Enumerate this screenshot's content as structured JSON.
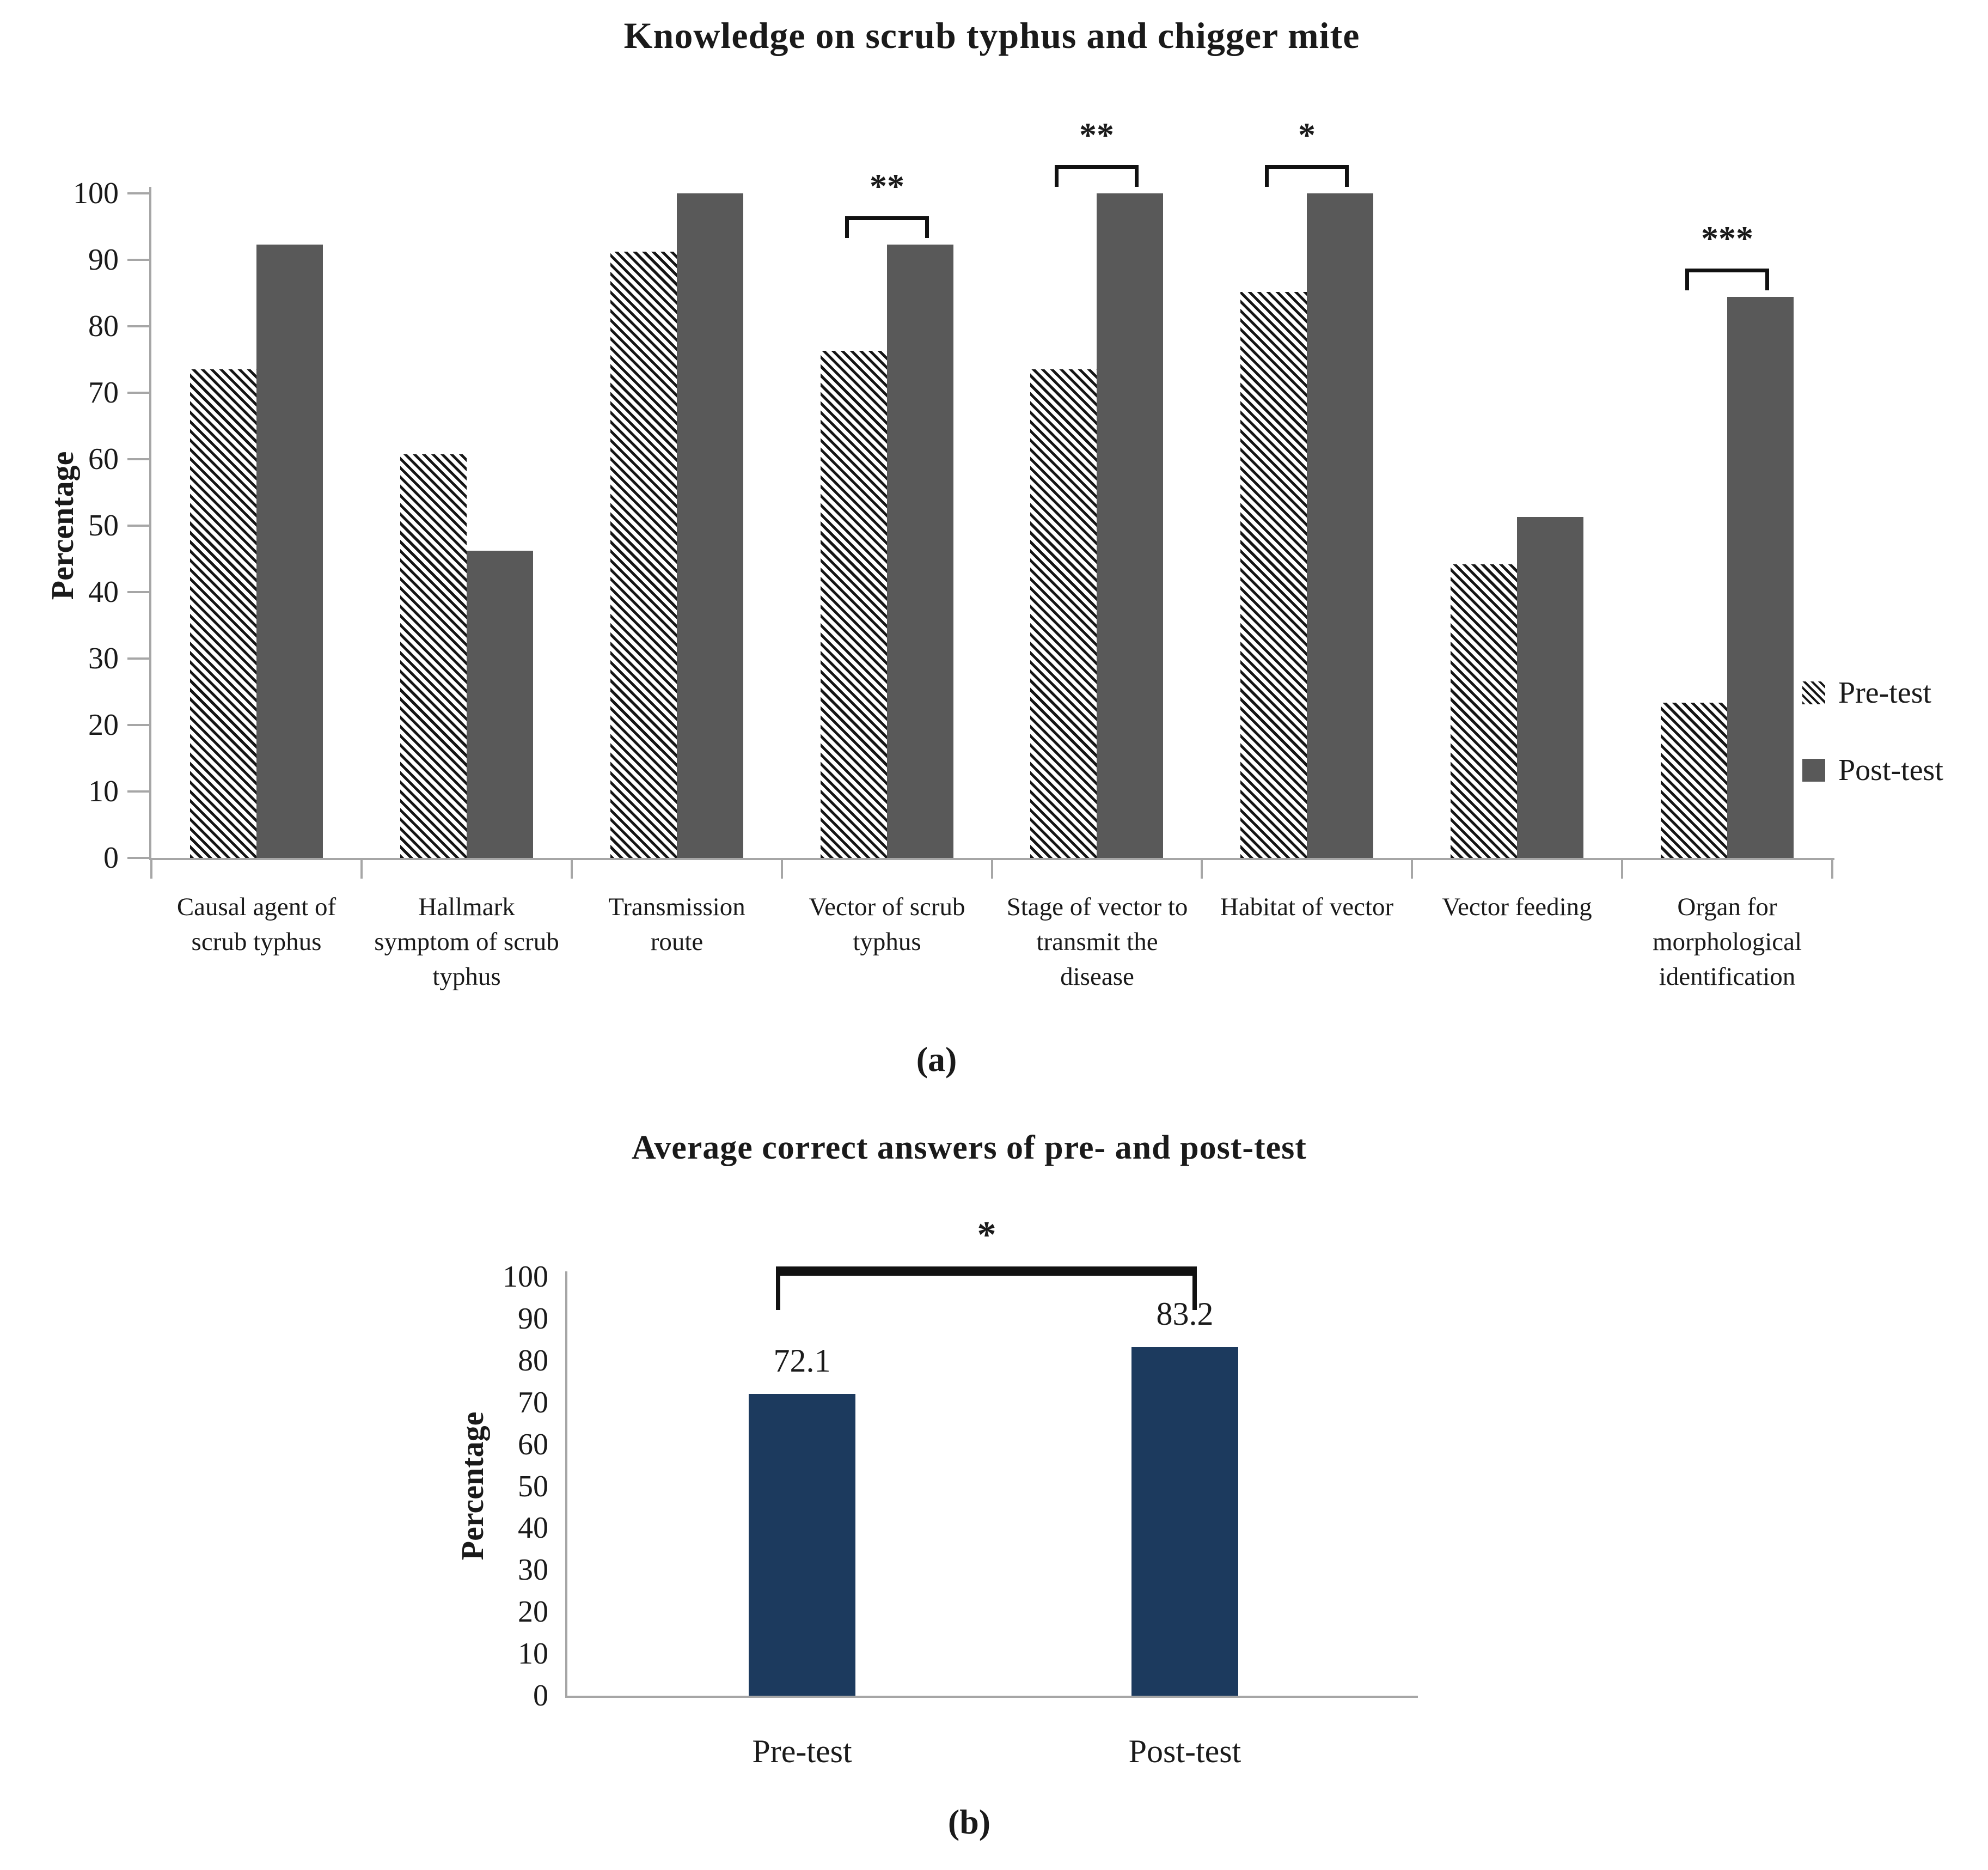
{
  "figure": {
    "caption_a": "(a)",
    "caption_b": "(b)"
  },
  "colors": {
    "post_test_gray": "#595959",
    "pre_test_hatch": "#151515",
    "navy_bar": "#1c3a5e",
    "axis_line": "#a6a6a6",
    "text": "#1a1a1a",
    "bracket": "#111111"
  },
  "chart_data": [
    {
      "id": "a",
      "type": "bar",
      "title": "Knowledge on scrub typhus and chigger mite",
      "ylabel": "Percentage",
      "ylim": [
        0,
        100
      ],
      "yticks": [
        0,
        10,
        20,
        30,
        40,
        50,
        60,
        70,
        80,
        90,
        100
      ],
      "grid": false,
      "legend_position": "right",
      "categories": [
        [
          "Causal agent of",
          "scrub typhus"
        ],
        [
          "Hallmark",
          "symptom of scrub",
          "typhus"
        ],
        [
          "Transmission",
          "route"
        ],
        [
          "Vector of scrub",
          "typhus"
        ],
        [
          "Stage of vector to",
          "transmit the",
          "disease"
        ],
        [
          "Habitat of vector"
        ],
        [
          "Vector feeding"
        ],
        [
          "Organ for",
          "morphological",
          "identification"
        ]
      ],
      "series": [
        {
          "name": "Pre-test",
          "style": "hatched",
          "values": [
            73.5,
            60.7,
            91.2,
            76.3,
            73.5,
            85.2,
            44.2,
            23.4
          ]
        },
        {
          "name": "Post-test",
          "style": "solid",
          "values": [
            92.3,
            46.2,
            100,
            92.3,
            100,
            100,
            51.3,
            84.4
          ]
        }
      ],
      "significance": [
        {
          "category_index": 3,
          "label": "**"
        },
        {
          "category_index": 4,
          "label": "**"
        },
        {
          "category_index": 5,
          "label": "*"
        },
        {
          "category_index": 7,
          "label": "***"
        }
      ]
    },
    {
      "id": "b",
      "type": "bar",
      "title": "Average correct answers of pre- and post-test",
      "ylabel": "Percentage",
      "ylim": [
        0,
        100
      ],
      "yticks": [
        0,
        10,
        20,
        30,
        40,
        50,
        60,
        70,
        80,
        90,
        100
      ],
      "grid": false,
      "categories": [
        "Pre-test",
        "Post-test"
      ],
      "series": [
        {
          "name": "Average correct answers",
          "values": [
            72.1,
            83.2
          ]
        }
      ],
      "value_labels": [
        "72.1",
        "83.2"
      ],
      "significance": [
        {
          "from": 0,
          "to": 1,
          "label": "*"
        }
      ]
    }
  ]
}
